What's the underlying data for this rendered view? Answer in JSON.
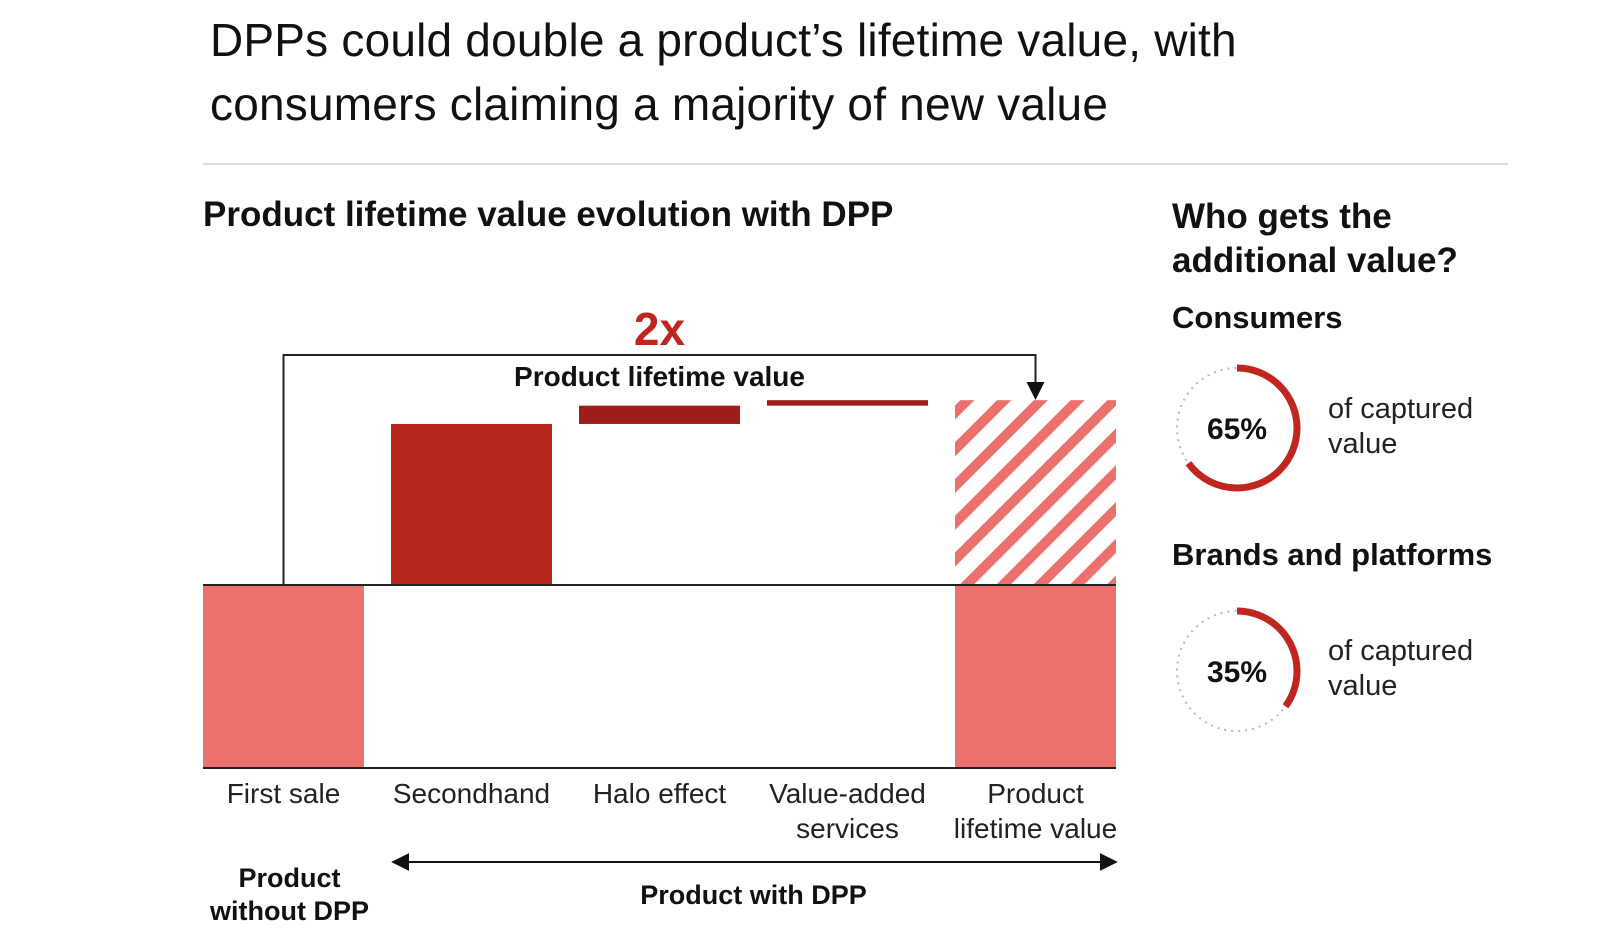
{
  "title": {
    "line1": "DPPs could double a product’s lifetime value, with",
    "line2": "consumers claiming a majority of new value"
  },
  "chart_section_title": "Product lifetime value evolution with DPP",
  "chart_data": {
    "type": "waterfall",
    "categories": [
      "First sale",
      "Secondhand",
      "Halo effect",
      "Value-added services",
      "Product lifetime value"
    ],
    "category_labels": [
      [
        "First sale"
      ],
      [
        "Secondhand"
      ],
      [
        "Halo effect"
      ],
      [
        "Value-added",
        "services"
      ],
      [
        "Product",
        "lifetime value"
      ]
    ],
    "values": [
      1.0,
      0.88,
      0.1,
      0.03,
      2.01
    ],
    "multiplier_label": "2x",
    "bracket_label": "Product lifetime value",
    "group_labels": {
      "without": [
        "Product",
        "without DPP"
      ],
      "with": "Product with DPP"
    },
    "colors": {
      "base": "#ec706c",
      "secondhand": "#b5261e",
      "increments": "#9e1c19",
      "hatch": "#ec706c",
      "accent": "#c0261f"
    }
  },
  "side_panel": {
    "title_line1": "Who gets the",
    "title_line2": "additional value?",
    "groups": [
      {
        "label": "Consumers",
        "percent": 65,
        "percent_label": "65%",
        "desc_line1": "of captured",
        "desc_line2": "value"
      },
      {
        "label": "Brands and platforms",
        "percent": 35,
        "percent_label": "35%",
        "desc_line1": "of captured",
        "desc_line2": "value"
      }
    ],
    "ring_color": "#c0261f"
  }
}
